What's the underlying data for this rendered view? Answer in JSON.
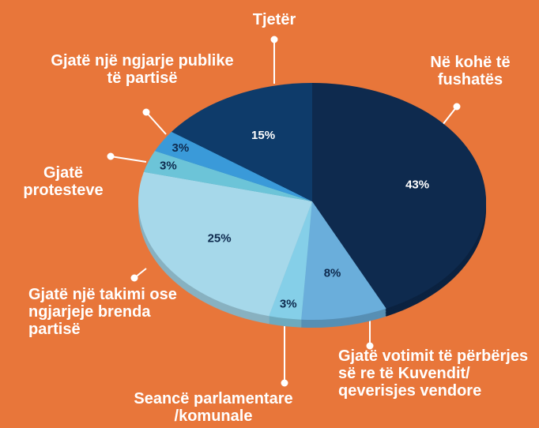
{
  "chart_data": {
    "type": "pie",
    "categories": [
      "Në kohë të fushatës",
      "Gjatë votimit të përbërjes së re të Kuvendit/ qeverisjes vendore",
      "Seancë parlamentare /komunale",
      "Gjatë një takimi ose ngjarjeje brenda partisë",
      "Gjatë protesteve",
      "Gjatë një ngjarje publike të partisë",
      "Tjetër"
    ],
    "values": [
      43,
      8,
      3,
      25,
      3,
      3,
      15
    ],
    "value_labels": [
      "43%",
      "8%",
      "3%",
      "25%",
      "3%",
      "3%",
      "15%"
    ],
    "colors": [
      "#0e2a4e",
      "#6aaedb",
      "#85cfe8",
      "#a6d8ea",
      "#6cc4d8",
      "#3a9ad9",
      "#0e3b6a"
    ]
  }
}
